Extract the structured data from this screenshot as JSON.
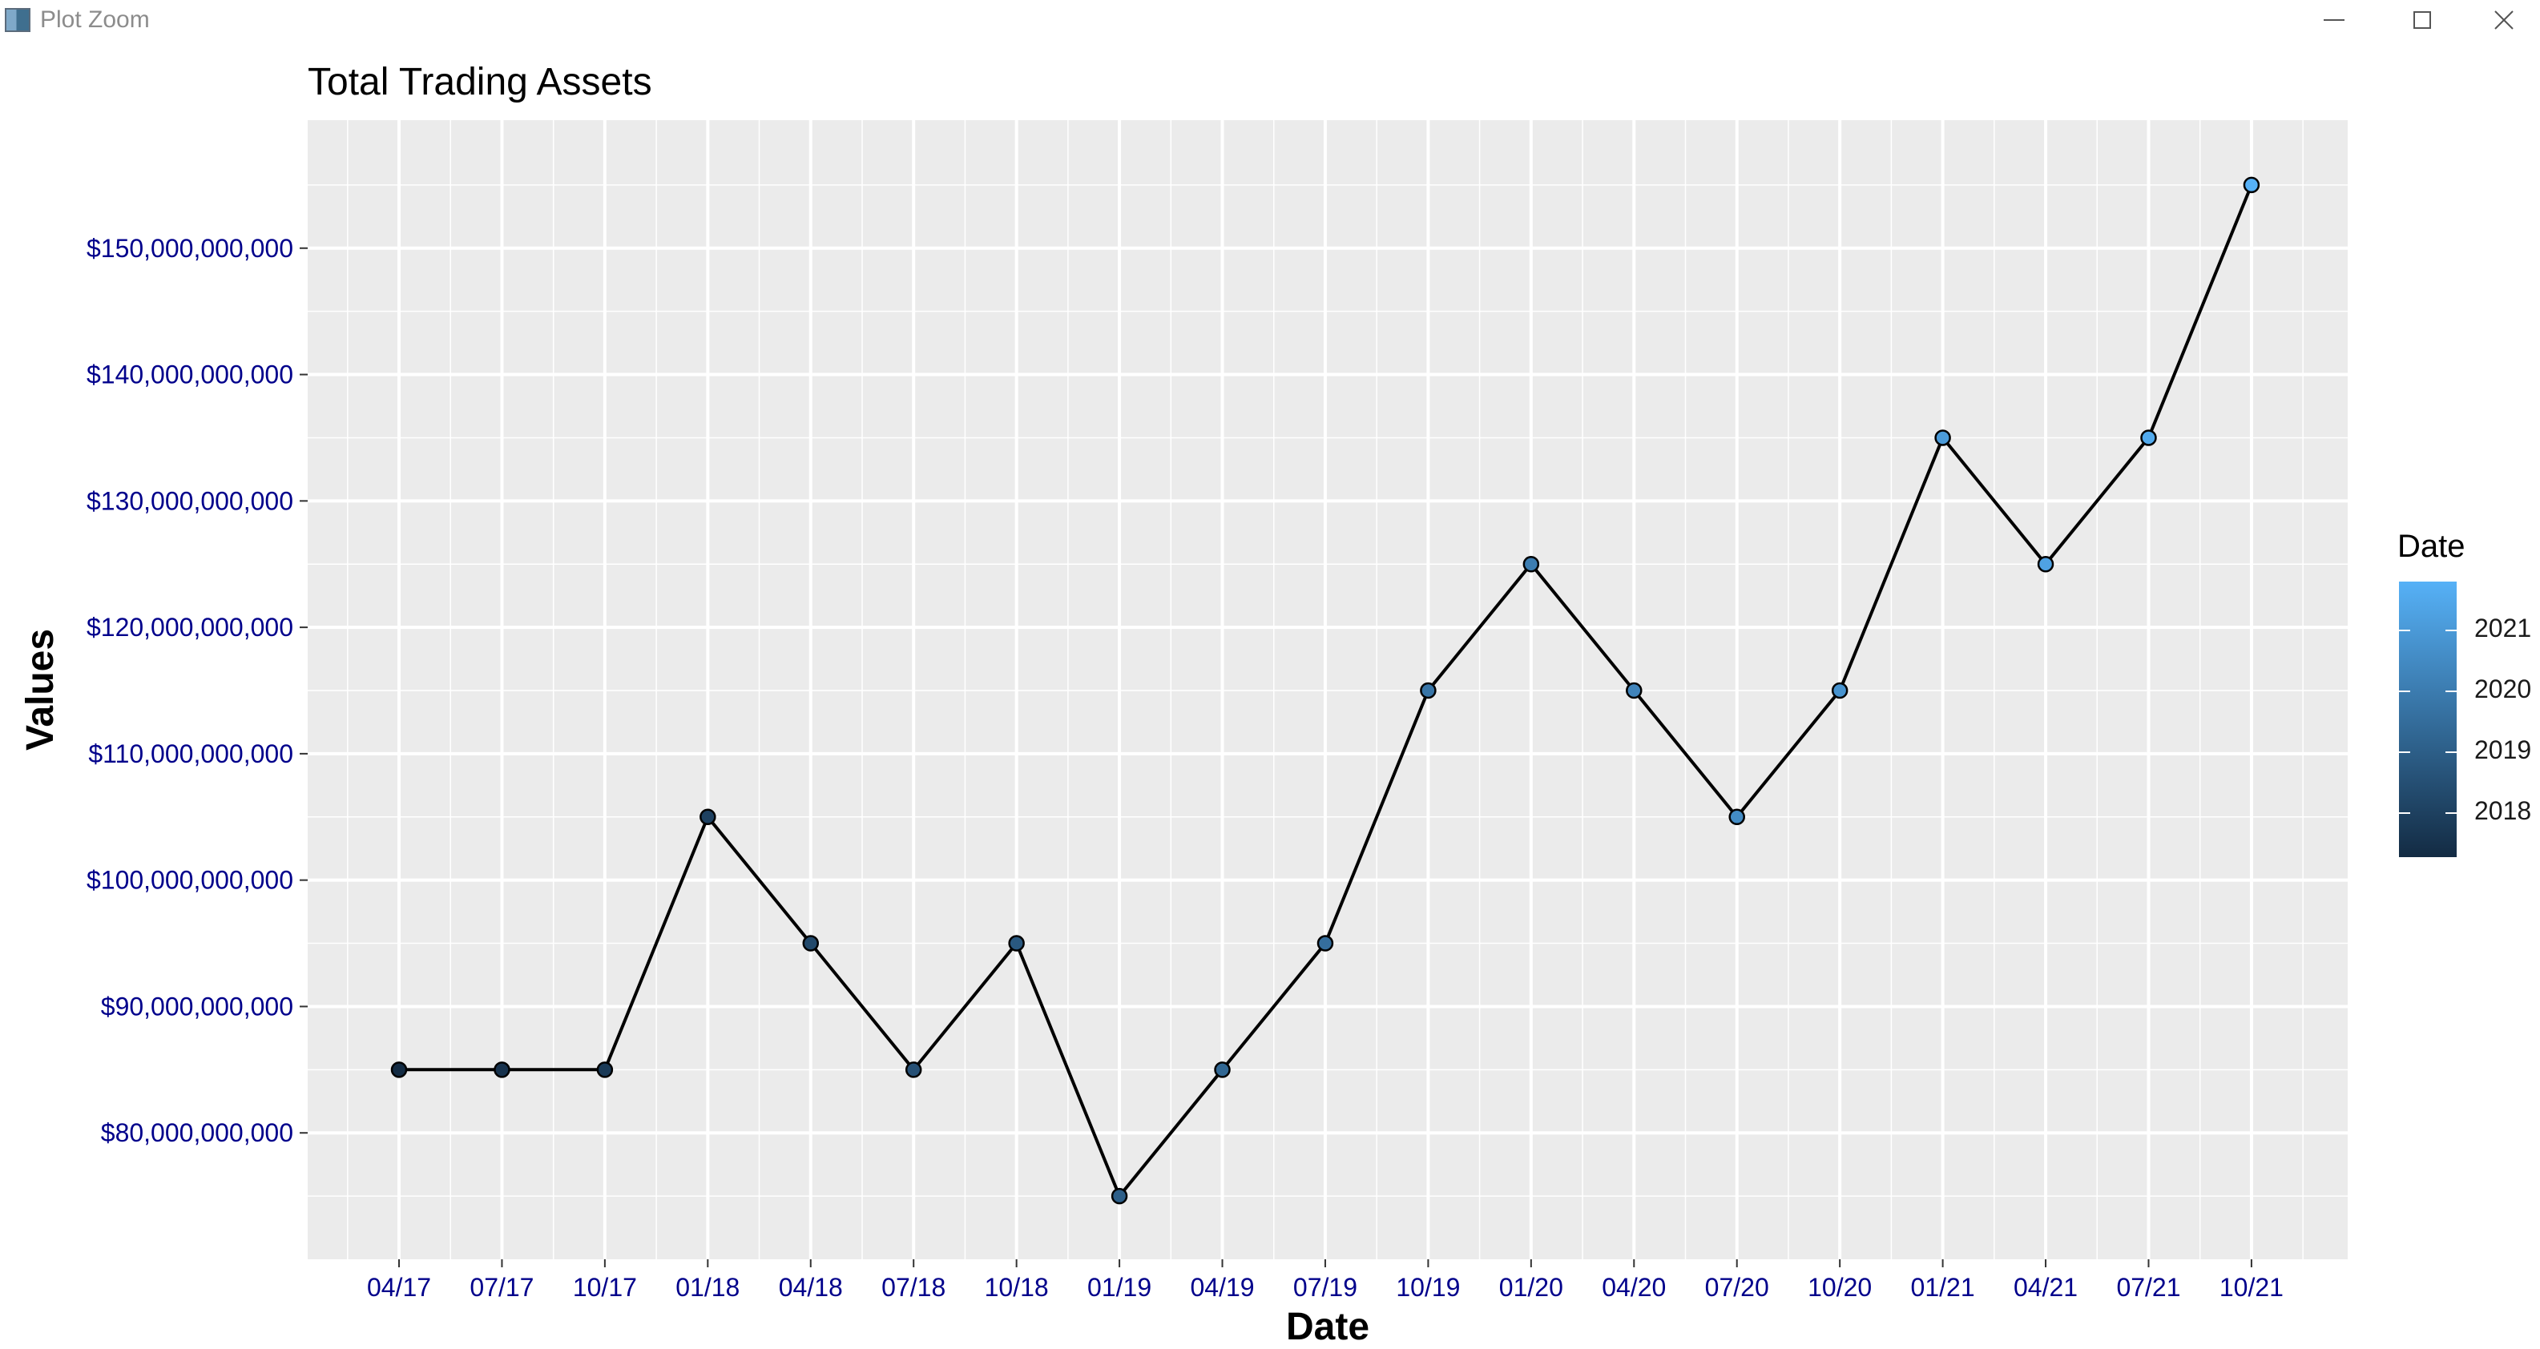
{
  "window": {
    "title": "Plot Zoom",
    "controls": [
      "minimize-icon",
      "maximize-icon",
      "close-icon"
    ]
  },
  "chart_data": {
    "type": "line",
    "title": "Total Trading Assets",
    "xlabel": "Date",
    "ylabel": "Values",
    "x": [
      "04/17",
      "07/17",
      "10/17",
      "01/18",
      "04/18",
      "07/18",
      "10/18",
      "01/19",
      "04/19",
      "07/19",
      "10/19",
      "01/20",
      "04/20",
      "07/20",
      "10/20",
      "01/21",
      "04/21",
      "07/21",
      "10/21"
    ],
    "dates": [
      "2017-04",
      "2017-07",
      "2017-10",
      "2018-01",
      "2018-04",
      "2018-07",
      "2018-10",
      "2019-01",
      "2019-04",
      "2019-07",
      "2019-10",
      "2020-01",
      "2020-04",
      "2020-07",
      "2020-10",
      "2021-01",
      "2021-04",
      "2021-07",
      "2021-10"
    ],
    "values": [
      85000000000,
      85000000000,
      85000000000,
      105000000000,
      95000000000,
      85000000000,
      95000000000,
      75000000000,
      85000000000,
      95000000000,
      115000000000,
      125000000000,
      115000000000,
      105000000000,
      115000000000,
      135000000000,
      125000000000,
      135000000000,
      155000000000
    ],
    "ylim": [
      70000000000,
      160000000000
    ],
    "yticks": [
      80000000000,
      90000000000,
      100000000000,
      110000000000,
      120000000000,
      130000000000,
      140000000000,
      150000000000
    ],
    "ytick_labels": [
      "$80,000,000,000",
      "$90,000,000,000",
      "$100,000,000,000",
      "$110,000,000,000",
      "$120,000,000,000",
      "$130,000,000,000",
      "$140,000,000,000",
      "$150,000,000,000"
    ],
    "grid": true,
    "legend": {
      "title": "Date",
      "position": "right",
      "labels": [
        "2021",
        "2020",
        "2019",
        "2018"
      ],
      "gradient": [
        "#132b43",
        "#56b1f7"
      ]
    },
    "colors": {
      "panel": "#ebebeb",
      "grid": "#ffffff",
      "line": "#000000",
      "tick_label": "#00008b",
      "low": "#132b43",
      "high": "#56b1f7"
    }
  }
}
